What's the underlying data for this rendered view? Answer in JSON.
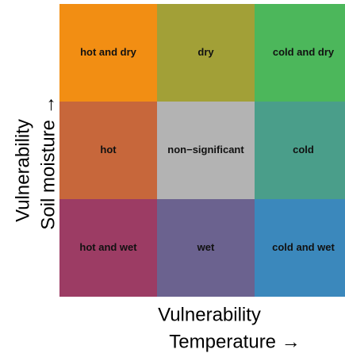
{
  "cells": [
    {
      "label": "hot and dry",
      "color": "#f28e13"
    },
    {
      "label": "dry",
      "color": "#a2a037"
    },
    {
      "label": "cold and dry",
      "color": "#4cb75b"
    },
    {
      "label": "hot",
      "color": "#c7673b"
    },
    {
      "label": "non−significant",
      "color": "#b3b3b3"
    },
    {
      "label": "cold",
      "color": "#4a9e8a"
    },
    {
      "label": "hot and wet",
      "color": "#9c3c64"
    },
    {
      "label": "wet",
      "color": "#6b628f"
    },
    {
      "label": "cold and wet",
      "color": "#3b88bc"
    }
  ],
  "x_axis": {
    "lines": [
      "Vulnerability",
      "Temperature →"
    ]
  },
  "y_axis": {
    "lines": [
      "Vulnerability",
      "Soil moisture →"
    ]
  }
}
